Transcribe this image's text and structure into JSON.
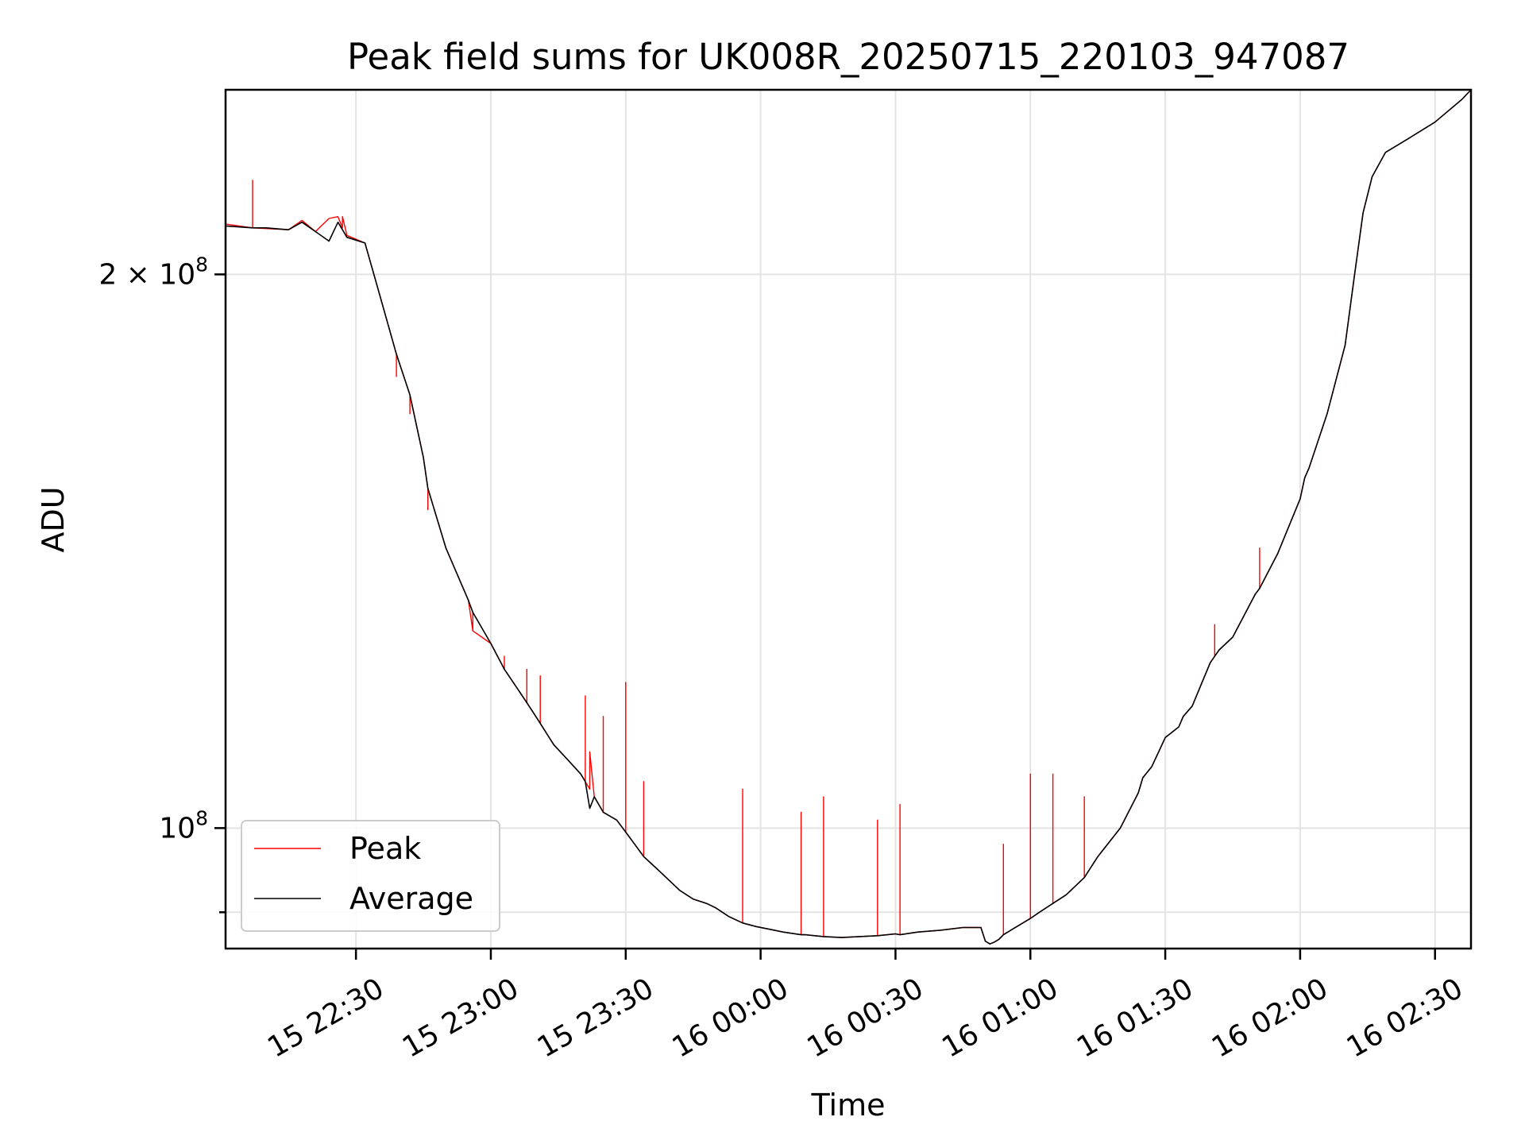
{
  "chart_data": {
    "type": "line",
    "title": "Peak field sums for UK008R_20250715_220103_947087",
    "xlabel": "Time",
    "ylabel": "ADU",
    "x_ticks": [
      "15 22:30",
      "15 23:00",
      "15 23:30",
      "16 00:00",
      "16 00:30",
      "16 01:00",
      "16 01:30",
      "16 02:00",
      "16 02:30"
    ],
    "x_tick_times": [
      "2025-07-15T22:30",
      "2025-07-15T23:00",
      "2025-07-15T23:30",
      "2025-07-16T00:00",
      "2025-07-16T00:30",
      "2025-07-16T01:00",
      "2025-07-16T01:30",
      "2025-07-16T02:00",
      "2025-07-16T02:30"
    ],
    "xlim": [
      "2025-07-15T22:01",
      "2025-07-16T02:38"
    ],
    "y_scale": "log",
    "ylim": [
      86000000,
      252000000
    ],
    "y_ticks": [
      {
        "value": 200000000,
        "base": "2 × 10",
        "exp": "8"
      },
      {
        "value": 100000000,
        "base": "10",
        "exp": "8"
      }
    ],
    "y_minor_ticks": [
      90000000
    ],
    "grid": true,
    "legend_position": "lower-left",
    "series": [
      {
        "name": "Peak",
        "color": "#ff0000",
        "x": [
          "2025-07-15T22:01",
          "2025-07-15T22:07",
          "2025-07-15T22:07",
          "2025-07-15T22:07",
          "2025-07-15T22:15",
          "2025-07-15T22:18",
          "2025-07-15T22:21",
          "2025-07-15T22:24",
          "2025-07-15T22:26",
          "2025-07-15T22:27",
          "2025-07-15T22:27",
          "2025-07-15T22:28",
          "2025-07-15T22:32",
          "2025-07-15T22:35",
          "2025-07-15T22:39",
          "2025-07-15T22:39",
          "2025-07-15T22:39",
          "2025-07-15T22:42",
          "2025-07-15T22:42",
          "2025-07-15T22:42",
          "2025-07-15T22:45",
          "2025-07-15T22:46",
          "2025-07-15T22:46",
          "2025-07-15T22:46",
          "2025-07-15T22:50",
          "2025-07-15T22:55",
          "2025-07-15T22:56",
          "2025-07-15T22:56",
          "2025-07-15T22:56",
          "2025-07-15T23:00",
          "2025-07-15T23:03",
          "2025-07-15T23:03",
          "2025-07-15T23:03",
          "2025-07-15T23:06",
          "2025-07-15T23:08",
          "2025-07-15T23:08",
          "2025-07-15T23:08",
          "2025-07-15T23:10",
          "2025-07-15T23:11",
          "2025-07-15T23:11",
          "2025-07-15T23:11",
          "2025-07-15T23:14",
          "2025-07-15T23:17",
          "2025-07-15T23:20",
          "2025-07-15T23:21",
          "2025-07-15T23:21",
          "2025-07-15T23:21",
          "2025-07-15T23:22",
          "2025-07-15T23:22",
          "2025-07-15T23:23",
          "2025-07-15T23:25",
          "2025-07-15T23:25",
          "2025-07-15T23:25",
          "2025-07-15T23:28",
          "2025-07-15T23:30",
          "2025-07-15T23:30",
          "2025-07-15T23:30",
          "2025-07-15T23:32",
          "2025-07-15T23:34",
          "2025-07-15T23:34",
          "2025-07-15T23:34",
          "2025-07-15T23:37",
          "2025-07-15T23:40",
          "2025-07-15T23:42",
          "2025-07-15T23:45",
          "2025-07-15T23:48",
          "2025-07-15T23:50",
          "2025-07-15T23:53",
          "2025-07-15T23:56",
          "2025-07-15T23:56",
          "2025-07-15T23:56",
          "2025-07-15T23:59",
          "2025-07-16T00:02",
          "2025-07-16T00:05",
          "2025-07-16T00:09",
          "2025-07-16T00:09",
          "2025-07-16T00:09",
          "2025-07-16T00:10",
          "2025-07-16T00:14",
          "2025-07-16T00:14",
          "2025-07-16T00:14",
          "2025-07-16T00:18",
          "2025-07-16T00:22",
          "2025-07-16T00:26",
          "2025-07-16T00:26",
          "2025-07-16T00:26",
          "2025-07-16T00:30",
          "2025-07-16T00:31",
          "2025-07-16T00:31",
          "2025-07-16T00:31",
          "2025-07-16T00:35",
          "2025-07-16T00:40",
          "2025-07-16T00:45",
          "2025-07-16T00:49",
          "2025-07-16T00:50",
          "2025-07-16T00:51",
          "2025-07-16T00:52",
          "2025-07-16T00:53",
          "2025-07-16T00:54",
          "2025-07-16T00:54",
          "2025-07-16T00:54",
          "2025-07-16T00:56",
          "2025-07-16T00:58",
          "2025-07-16T01:00",
          "2025-07-16T01:00",
          "2025-07-16T01:00",
          "2025-07-16T01:02",
          "2025-07-16T01:05",
          "2025-07-16T01:05",
          "2025-07-16T01:05",
          "2025-07-16T01:08",
          "2025-07-16T01:12",
          "2025-07-16T01:12",
          "2025-07-16T01:12",
          "2025-07-16T01:15",
          "2025-07-16T01:20",
          "2025-07-16T01:24",
          "2025-07-16T01:25",
          "2025-07-16T01:27",
          "2025-07-16T01:30",
          "2025-07-16T01:33",
          "2025-07-16T01:34",
          "2025-07-16T01:36",
          "2025-07-16T01:40",
          "2025-07-16T01:41",
          "2025-07-16T01:41",
          "2025-07-16T01:41",
          "2025-07-16T01:42",
          "2025-07-16T01:45",
          "2025-07-16T01:50",
          "2025-07-16T01:51",
          "2025-07-16T01:51",
          "2025-07-16T01:51",
          "2025-07-16T01:55",
          "2025-07-16T02:00",
          "2025-07-16T02:01",
          "2025-07-16T02:02",
          "2025-07-16T02:06",
          "2025-07-16T02:10",
          "2025-07-16T02:12",
          "2025-07-16T02:14",
          "2025-07-16T02:16",
          "2025-07-16T02:19",
          "2025-07-16T02:24",
          "2025-07-16T02:30",
          "2025-07-16T02:36",
          "2025-07-16T02:38"
        ],
        "values": [
          213000000,
          212000000,
          225000000,
          212000000,
          211500000,
          214000000,
          211000000,
          214500000,
          215000000,
          212000000,
          215000000,
          210000000,
          208000000,
          196000000,
          181000000,
          176000000,
          181000000,
          172000000,
          168000000,
          172000000,
          159000000,
          153000000,
          149000000,
          153000000,
          142000000,
          133000000,
          128000000,
          131000000,
          128000000,
          126000000,
          122000000,
          124000000,
          122000000,
          119000000,
          117000000,
          122000000,
          117000000,
          115000000,
          114000000,
          121000000,
          114000000,
          111000000,
          109000000,
          107000000,
          106000000,
          118000000,
          106000000,
          105000000,
          110000000,
          104000000,
          102000000,
          115000000,
          102000000,
          101000000,
          99500000,
          120000000,
          99500000,
          98000000,
          96500000,
          106000000,
          96500000,
          95000000,
          93500000,
          92500000,
          91500000,
          91000000,
          90500000,
          89500000,
          88800000,
          105000000,
          88800000,
          88400000,
          88100000,
          87800000,
          87500000,
          102000000,
          87500000,
          87500000,
          87300000,
          104000000,
          87300000,
          87200000,
          87300000,
          87400000,
          101000000,
          87400000,
          87600000,
          87500000,
          103000000,
          87500000,
          87800000,
          88000000,
          88300000,
          88300000,
          86800000,
          86500000,
          86700000,
          87000000,
          87500000,
          98000000,
          87500000,
          88100000,
          88700000,
          89300000,
          107000000,
          89300000,
          90000000,
          91000000,
          107000000,
          91000000,
          92000000,
          94000000,
          104000000,
          94000000,
          96500000,
          100000000,
          104500000,
          106500000,
          108000000,
          112000000,
          113500000,
          115000000,
          116500000,
          123000000,
          124000000,
          129000000,
          124000000,
          125000000,
          127000000,
          134000000,
          135000000,
          142000000,
          135000000,
          141000000,
          151000000,
          155000000,
          157000000,
          168000000,
          183000000,
          199000000,
          216000000,
          226000000,
          233000000,
          237000000,
          242000000,
          249000000,
          252000000
        ]
      },
      {
        "name": "Average",
        "color": "#000000",
        "x": [
          "2025-07-15T22:01",
          "2025-07-15T22:07",
          "2025-07-15T22:10",
          "2025-07-15T22:15",
          "2025-07-15T22:18",
          "2025-07-15T22:21",
          "2025-07-15T22:24",
          "2025-07-15T22:26",
          "2025-07-15T22:27",
          "2025-07-15T22:28",
          "2025-07-15T22:32",
          "2025-07-15T22:35",
          "2025-07-15T22:39",
          "2025-07-15T22:42",
          "2025-07-15T22:45",
          "2025-07-15T22:46",
          "2025-07-15T22:50",
          "2025-07-15T22:55",
          "2025-07-15T22:56",
          "2025-07-15T23:00",
          "2025-07-15T23:03",
          "2025-07-15T23:06",
          "2025-07-15T23:08",
          "2025-07-15T23:10",
          "2025-07-15T23:11",
          "2025-07-15T23:14",
          "2025-07-15T23:17",
          "2025-07-15T23:20",
          "2025-07-15T23:21",
          "2025-07-15T23:22",
          "2025-07-15T23:23",
          "2025-07-15T23:25",
          "2025-07-15T23:28",
          "2025-07-15T23:30",
          "2025-07-15T23:32",
          "2025-07-15T23:34",
          "2025-07-15T23:37",
          "2025-07-15T23:40",
          "2025-07-15T23:42",
          "2025-07-15T23:45",
          "2025-07-15T23:48",
          "2025-07-15T23:50",
          "2025-07-15T23:53",
          "2025-07-15T23:56",
          "2025-07-15T23:59",
          "2025-07-16T00:02",
          "2025-07-16T00:05",
          "2025-07-16T00:09",
          "2025-07-16T00:10",
          "2025-07-16T00:14",
          "2025-07-16T00:18",
          "2025-07-16T00:22",
          "2025-07-16T00:26",
          "2025-07-16T00:30",
          "2025-07-16T00:31",
          "2025-07-16T00:35",
          "2025-07-16T00:40",
          "2025-07-16T00:45",
          "2025-07-16T00:49",
          "2025-07-16T00:50",
          "2025-07-16T00:51",
          "2025-07-16T00:52",
          "2025-07-16T00:53",
          "2025-07-16T00:54",
          "2025-07-16T00:56",
          "2025-07-16T00:58",
          "2025-07-16T01:00",
          "2025-07-16T01:02",
          "2025-07-16T01:05",
          "2025-07-16T01:08",
          "2025-07-16T01:12",
          "2025-07-16T01:15",
          "2025-07-16T01:20",
          "2025-07-16T01:24",
          "2025-07-16T01:25",
          "2025-07-16T01:27",
          "2025-07-16T01:30",
          "2025-07-16T01:33",
          "2025-07-16T01:34",
          "2025-07-16T01:36",
          "2025-07-16T01:40",
          "2025-07-16T01:41",
          "2025-07-16T01:42",
          "2025-07-16T01:45",
          "2025-07-16T01:50",
          "2025-07-16T01:51",
          "2025-07-16T01:55",
          "2025-07-16T02:00",
          "2025-07-16T02:01",
          "2025-07-16T02:02",
          "2025-07-16T02:06",
          "2025-07-16T02:10",
          "2025-07-16T02:12",
          "2025-07-16T02:14",
          "2025-07-16T02:16",
          "2025-07-16T02:19",
          "2025-07-16T02:24",
          "2025-07-16T02:30",
          "2025-07-16T02:36",
          "2025-07-16T02:38"
        ],
        "values": [
          212500000,
          212000000,
          212000000,
          211500000,
          213500000,
          211000000,
          208500000,
          213500000,
          211500000,
          209500000,
          208000000,
          196000000,
          181000000,
          172000000,
          159000000,
          153000000,
          142000000,
          133000000,
          131000000,
          126000000,
          122000000,
          119000000,
          117000000,
          115000000,
          114000000,
          111000000,
          109000000,
          107000000,
          106000000,
          102500000,
          104000000,
          102000000,
          101000000,
          99500000,
          98000000,
          96500000,
          95000000,
          93500000,
          92500000,
          91500000,
          91000000,
          90500000,
          89500000,
          88800000,
          88400000,
          88100000,
          87800000,
          87500000,
          87500000,
          87300000,
          87200000,
          87300000,
          87400000,
          87600000,
          87500000,
          87800000,
          88000000,
          88300000,
          88300000,
          86800000,
          86500000,
          86700000,
          87000000,
          87500000,
          88100000,
          88700000,
          89300000,
          90000000,
          91000000,
          92000000,
          94000000,
          96500000,
          100000000,
          104500000,
          106500000,
          108000000,
          112000000,
          113500000,
          115000000,
          116500000,
          123000000,
          124000000,
          125000000,
          127000000,
          134000000,
          135000000,
          141000000,
          151000000,
          155000000,
          157000000,
          168000000,
          183000000,
          199000000,
          216000000,
          226000000,
          233000000,
          237000000,
          242000000,
          249000000,
          252000000
        ]
      }
    ]
  }
}
